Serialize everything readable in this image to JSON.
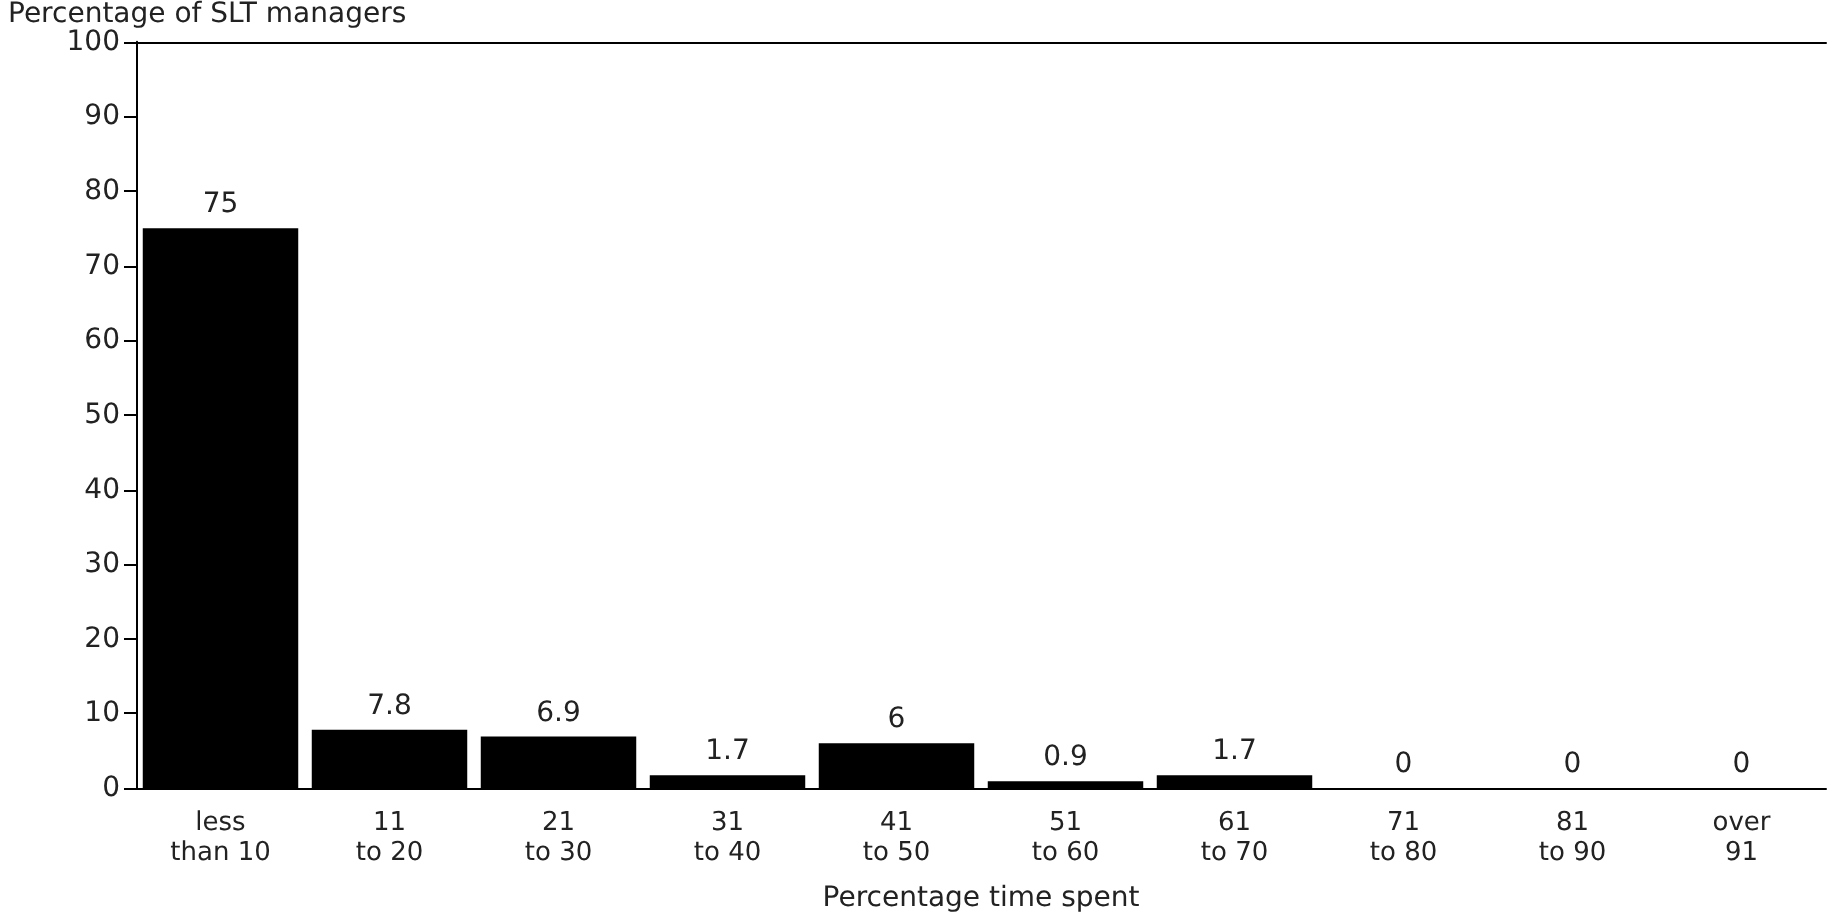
{
  "chart_data": {
    "type": "bar",
    "xlabel": "Percentage time spent",
    "ylabel": "Percentage of SLT managers",
    "categories": [
      "less\nthan 10",
      "11\nto 20",
      "21\nto 30",
      "31\nto 40",
      "41\nto 50",
      "51\nto 60",
      "61\nto 70",
      "71\nto 80",
      "81\nto 90",
      "over\n91"
    ],
    "values": [
      75,
      7.8,
      6.9,
      1.7,
      6,
      0.9,
      1.7,
      0,
      0,
      0
    ],
    "color": "#000000",
    "ylim": [
      0,
      100
    ],
    "yticks": [
      0,
      10,
      20,
      30,
      40,
      50,
      60,
      70,
      80,
      90,
      100
    ],
    "data_labels": true
  }
}
